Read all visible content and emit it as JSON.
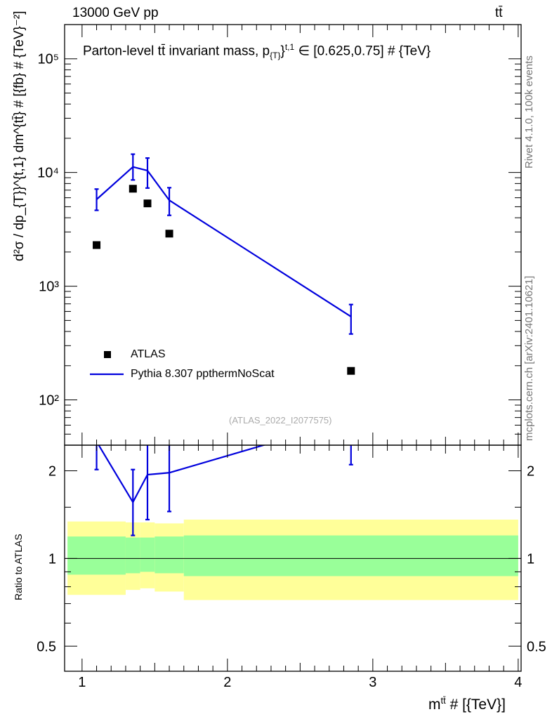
{
  "header": {
    "left": "13000 GeV pp",
    "right": "tt̄"
  },
  "title": {
    "prefix": "Parton-level tt̄ invariant mass, p",
    "sub": "{T}",
    "mid": "}",
    "sup": "t,1",
    "suffix": "∈ [0.625,0.75] # {TeV}"
  },
  "side": {
    "rivet": "Rivet 4.1.0,  100k events",
    "mcplots": "mcplots.cern.ch [arXiv:2401.10621]"
  },
  "watermark": "(ATLAS_2022_I2077575)",
  "axes": {
    "ylabel_top": "d²σ / dp_{T}}^{t,1} dm^{tt̄} # [{fb} # {TeV}⁻²]",
    "ylabel_bottom": "Ratio to ATLAS",
    "xlabel_main": "m",
    "xlabel_sup": "tt̄",
    "xlabel_rest": " # [{TeV}]"
  },
  "legend": {
    "data_label": "ATLAS",
    "mc_label": "Pythia 8.307 ppthermNoScat"
  },
  "colors": {
    "mc": "#0000dd",
    "band_inner": "#99ff99",
    "band_outer": "#ffff99",
    "data": "#000000"
  },
  "chart_data": [
    {
      "type": "scatter",
      "panel": "main",
      "yscale": "log",
      "xlim": [
        0.88,
        4.02
      ],
      "ylim": [
        40,
        200000
      ],
      "yticks": [
        {
          "v": 100,
          "label": "10²"
        },
        {
          "v": 1000,
          "label": "10³"
        },
        {
          "v": 10000,
          "label": "10⁴"
        },
        {
          "v": 100000,
          "label": "10⁵"
        }
      ],
      "series": [
        {
          "name": "ATLAS",
          "style": "markers",
          "x": [
            1.1,
            1.35,
            1.45,
            1.6,
            2.85
          ],
          "y": [
            2300,
            7200,
            5350,
            2900,
            180
          ]
        },
        {
          "name": "Pythia 8.307 ppthermNoScat",
          "style": "line",
          "x": [
            1.1,
            1.35,
            1.45,
            1.6,
            2.85
          ],
          "y": [
            5800,
            11200,
            10400,
            5700,
            540
          ],
          "yerr_low": [
            1150,
            2600,
            3100,
            1500,
            160
          ],
          "yerr_high": [
            1350,
            3300,
            3000,
            1650,
            150
          ]
        }
      ]
    },
    {
      "type": "line",
      "panel": "ratio",
      "ylabel": "Ratio to ATLAS",
      "xlim": [
        0.88,
        4.02
      ],
      "ylim": [
        0.41,
        2.45
      ],
      "yticks": [
        {
          "v": 0.5,
          "label": "0.5"
        },
        {
          "v": 1,
          "label": "1"
        },
        {
          "v": 2,
          "label": "2"
        }
      ],
      "xticks": [
        {
          "v": 1,
          "label": "1"
        },
        {
          "v": 2,
          "label": "2"
        },
        {
          "v": 3,
          "label": "3"
        },
        {
          "v": 4,
          "label": "4"
        }
      ],
      "bands": [
        {
          "x0": 0.9,
          "x1": 1.3,
          "inner": [
            0.88,
            1.19
          ],
          "outer": [
            0.75,
            1.34
          ]
        },
        {
          "x0": 1.3,
          "x1": 1.4,
          "inner": [
            0.89,
            1.18
          ],
          "outer": [
            0.78,
            1.33
          ]
        },
        {
          "x0": 1.4,
          "x1": 1.5,
          "inner": [
            0.9,
            1.18
          ],
          "outer": [
            0.79,
            1.33
          ]
        },
        {
          "x0": 1.5,
          "x1": 1.7,
          "inner": [
            0.89,
            1.19
          ],
          "outer": [
            0.77,
            1.32
          ]
        },
        {
          "x0": 1.7,
          "x1": 4.0,
          "inner": [
            0.87,
            1.2
          ],
          "outer": [
            0.72,
            1.36
          ]
        }
      ],
      "series": [
        {
          "name": "Pythia / ATLAS",
          "x": [
            1.1,
            1.35,
            1.45,
            1.6,
            2.85
          ],
          "y": [
            2.52,
            1.56,
            1.94,
            1.97,
            3.0
          ],
          "yerr_low": [
            0.5,
            0.36,
            0.58,
            0.52,
            0.9
          ],
          "yerr_high": [
            0.58,
            0.46,
            0.56,
            0.57,
            0.85
          ]
        }
      ]
    }
  ]
}
